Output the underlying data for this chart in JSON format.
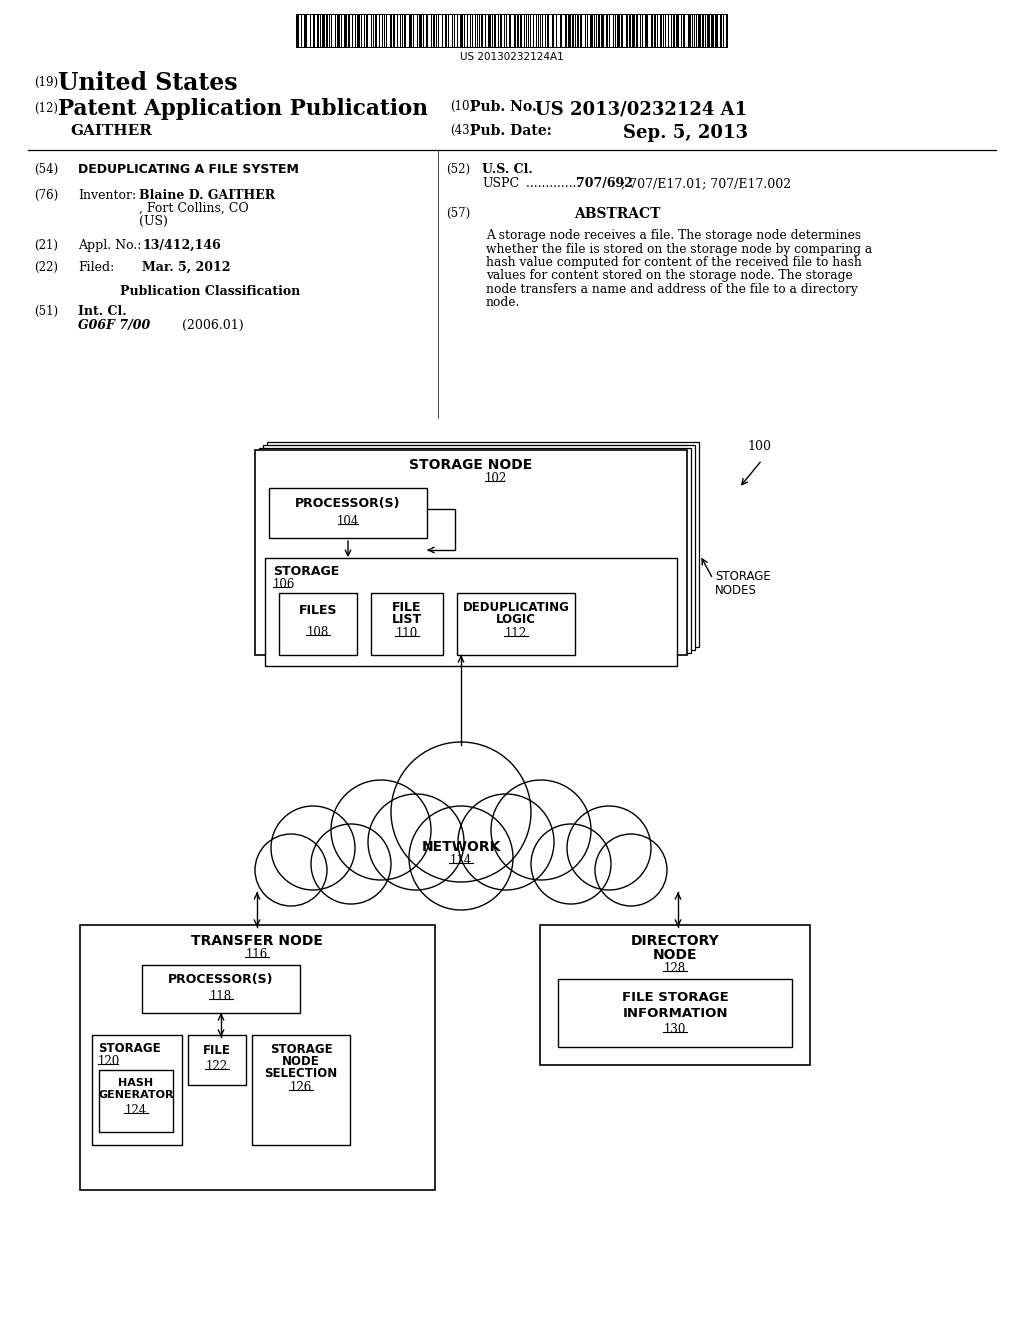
{
  "bg_color": "#ffffff",
  "barcode_num": "US 20130232124A1",
  "h19": "(19)",
  "united_states": "United States",
  "h12": "(12)",
  "patent_app": "Patent Application Publication",
  "gaither": "GAITHER",
  "h10": "(10)",
  "pub_no_label": "Pub. No.:",
  "pub_no": "US 2013/0232124 A1",
  "h43": "(43)",
  "pub_date_label": "Pub. Date:",
  "pub_date": "Sep. 5, 2013",
  "h54": "(54)",
  "title": "DEDUPLICATING A FILE SYSTEM",
  "h76": "(76)",
  "inventor_label": "Inventor:",
  "inventor_name": "Blaine D. GAITHER",
  "inventor_loc1": ", Fort Collins, CO",
  "inventor_loc2": "(US)",
  "h21": "(21)",
  "appl_label": "Appl. No.:",
  "appl_no": "13/412,146",
  "h22": "(22)",
  "filed_label": "Filed:",
  "filed_date": "Mar. 5, 2012",
  "pub_class": "Publication Classification",
  "h51": "(51)",
  "int_cl_label": "Int. Cl.",
  "int_cl_val": "G06F 7/00",
  "int_cl_date": "(2006.01)",
  "h52": "(52)",
  "us_cl_label": "U.S. Cl.",
  "uspc_label": "USPC",
  "uspc_dots": "  .............. ",
  "uspc_val": "707/692",
  "uspc_rest": "; 707/E17.01; 707/E17.002",
  "h57": "(57)",
  "abstract_title": "ABSTRACT",
  "abstract_lines": [
    "A storage node receives a file. The storage node determines",
    "whether the file is stored on the storage node by comparing a",
    "hash value computed for content of the received file to hash",
    "values for content stored on the storage node. The storage",
    "node transfers a name and address of the file to a directory",
    "node."
  ],
  "sn_label": "STORAGE NODE",
  "ref102": "102",
  "proc1": "PROCESSOR(S)",
  "ref104": "104",
  "stor1": "STORAGE",
  "ref106": "106",
  "files": "FILES",
  "ref108": "108",
  "file_list1": "FILE",
  "file_list2": "LIST",
  "ref110": "110",
  "dedup1": "DEDUPLICATING",
  "dedup2": "LOGIC",
  "ref112": "112",
  "sn_nodes1": "STORAGE",
  "sn_nodes2": "NODES",
  "ref100": "100",
  "net": "NETWORK",
  "ref114": "114",
  "tn": "TRANSFER NODE",
  "ref116": "116",
  "proc2": "PROCESSOR(S)",
  "ref118": "118",
  "stor2": "STORAGE",
  "ref120": "120",
  "file_lbl": "FILE",
  "ref122": "122",
  "sns1": "STORAGE",
  "sns2": "NODE",
  "sns3": "SELECTION",
  "ref126": "126",
  "hg1": "HASH",
  "hg2": "GENERATOR",
  "ref124": "124",
  "dn1": "DIRECTORY",
  "dn2": "NODE",
  "ref128": "128",
  "fsi1": "FILE STORAGE",
  "fsi2": "INFORMATION",
  "ref130": "130"
}
